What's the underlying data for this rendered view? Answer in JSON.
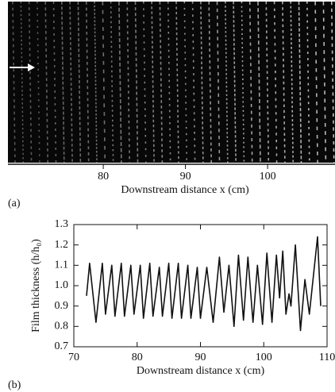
{
  "chart_data": [
    {
      "type": "image",
      "panel_label": "(a)",
      "xlabel": "Downstream distance  x (cm)",
      "xlim": [
        68.4,
        108.2
      ],
      "xticks": [
        80,
        90,
        100
      ]
    },
    {
      "type": "line",
      "panel_label": "(b)",
      "xlabel": "Downstream distance  x (cm)",
      "ylabel": "Film thickness (h/h₀)",
      "color": "#111111",
      "x": [
        72,
        72.5,
        73.5,
        74.5,
        75,
        76,
        76.5,
        77.5,
        78,
        79,
        79.5,
        80.5,
        81,
        82,
        82.5,
        83.5,
        84,
        85,
        85.5,
        86.5,
        87,
        88,
        88.5,
        89.5,
        90,
        91,
        92,
        93,
        93.7,
        94.5,
        95.3,
        96,
        96.8,
        97.5,
        98.3,
        99,
        99.8,
        100.5,
        101.3,
        102,
        102.5,
        103,
        103.5,
        104,
        104.3,
        105,
        105.8,
        106.5,
        107.2,
        108.5,
        109
      ],
      "values": [
        0.95,
        1.11,
        0.82,
        1.11,
        0.86,
        1.1,
        0.85,
        1.11,
        0.85,
        1.1,
        0.86,
        1.1,
        0.84,
        1.11,
        0.85,
        1.09,
        0.85,
        1.11,
        0.84,
        1.11,
        0.84,
        1.1,
        0.84,
        1.09,
        0.84,
        1.09,
        0.82,
        1.14,
        0.87,
        1.1,
        0.8,
        1.15,
        0.83,
        1.14,
        0.82,
        1.1,
        0.81,
        1.16,
        0.82,
        1.15,
        0.94,
        1.17,
        0.86,
        0.96,
        0.9,
        1.2,
        0.78,
        1.03,
        0.86,
        1.24,
        0.9
      ],
      "xlim": [
        70,
        110
      ],
      "xticks": [
        70,
        80,
        90,
        100,
        110
      ],
      "ylim": [
        0.7,
        1.3
      ],
      "yticks": [
        0.7,
        0.8,
        0.9,
        {
          "value": 1,
          "label": "1.0"
        },
        1.1,
        1.2,
        1.3
      ]
    }
  ]
}
